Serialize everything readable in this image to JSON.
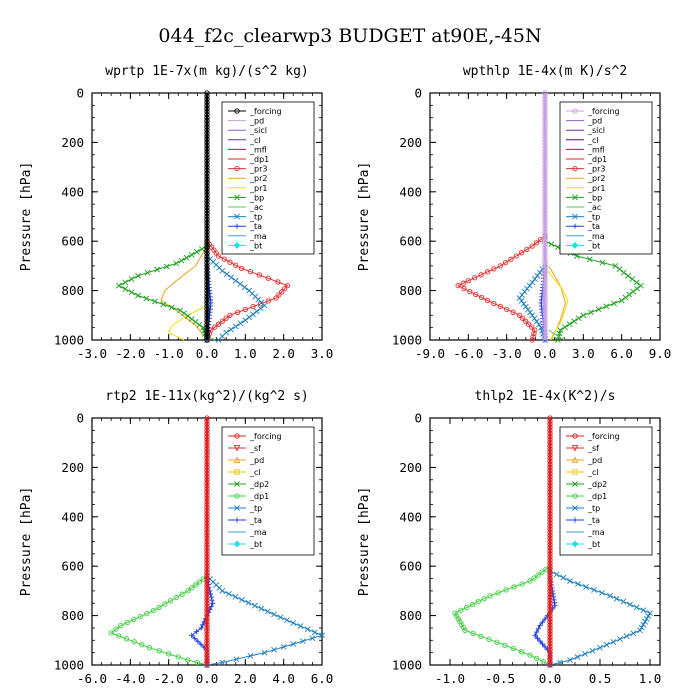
{
  "figure": {
    "title": "044_f2c_clearwp3  BUDGET at90E,-45N"
  },
  "chart_data": [
    {
      "type": "line",
      "title": "wprtp  1E-7x(m kg)/(s^2 kg)",
      "ylabel": "Pressure [hPa]",
      "xlabel": "",
      "xlim": [
        -3,
        3
      ],
      "ylim": [
        0,
        1000
      ],
      "y_inverted": true,
      "xticks": [
        "-3.0",
        "-2.0",
        "-1.0",
        "0.0",
        "1.0",
        "2.0",
        "3.0"
      ],
      "yticks": [
        "0",
        "200",
        "400",
        "600",
        "800",
        "1000"
      ],
      "legend_position": "upper-right",
      "series": [
        {
          "name": "_forcing",
          "color": "#000000",
          "marker": "circle",
          "points": [
            [
              0,
              0
            ],
            [
              0,
              1000
            ]
          ]
        },
        {
          "name": "_pd",
          "color": "#c8a0e0",
          "marker": "none",
          "points": []
        },
        {
          "name": "_sicl",
          "color": "#9060c0",
          "marker": "none",
          "points": []
        },
        {
          "name": "_cl",
          "color": "#7030a0",
          "marker": "none",
          "points": []
        },
        {
          "name": "_mfl",
          "color": "#b01050",
          "marker": "none",
          "points": []
        },
        {
          "name": "_dp1",
          "color": "#e02020",
          "marker": "none",
          "points": []
        },
        {
          "name": "_pr3",
          "color": "#e03030",
          "marker": "circle",
          "points": [
            [
              0,
              600
            ],
            [
              0.3,
              660
            ],
            [
              0.9,
              710
            ],
            [
              1.6,
              750
            ],
            [
              2.1,
              780
            ],
            [
              1.8,
              830
            ],
            [
              0.6,
              900
            ],
            [
              0.1,
              960
            ],
            [
              0,
              1000
            ]
          ]
        },
        {
          "name": "_pr2",
          "color": "#f0a020",
          "marker": "none",
          "points": [
            [
              0,
              620
            ],
            [
              -0.3,
              700
            ],
            [
              -0.8,
              760
            ],
            [
              -1.1,
              800
            ],
            [
              -1.2,
              840
            ],
            [
              -0.8,
              880
            ],
            [
              -0.3,
              940
            ],
            [
              0,
              1000
            ]
          ]
        },
        {
          "name": "_pr1",
          "color": "#f0e000",
          "marker": "none",
          "points": [
            [
              0,
              860
            ],
            [
              -0.5,
              900
            ],
            [
              -0.9,
              940
            ],
            [
              -1.0,
              970
            ],
            [
              -0.6,
              1000
            ]
          ]
        },
        {
          "name": "_bp",
          "color": "#20a020",
          "marker": "x",
          "points": [
            [
              0,
              620
            ],
            [
              -0.8,
              690
            ],
            [
              -1.8,
              740
            ],
            [
              -2.3,
              780
            ],
            [
              -1.8,
              820
            ],
            [
              -0.7,
              880
            ],
            [
              -0.1,
              950
            ],
            [
              0,
              1000
            ]
          ]
        },
        {
          "name": "_ac",
          "color": "#60c060",
          "marker": "none",
          "points": [
            [
              0,
              980
            ],
            [
              0.2,
              1000
            ]
          ]
        },
        {
          "name": "_tp",
          "color": "#2080c0",
          "marker": "x",
          "points": [
            [
              0,
              660
            ],
            [
              0.4,
              720
            ],
            [
              1.1,
              800
            ],
            [
              1.5,
              860
            ],
            [
              1.0,
              920
            ],
            [
              0.5,
              970
            ],
            [
              0.3,
              1000
            ]
          ]
        },
        {
          "name": "_ta",
          "color": "#2040e0",
          "marker": "plus",
          "points": [
            [
              0,
              700
            ],
            [
              0.1,
              850
            ],
            [
              0,
              1000
            ]
          ]
        },
        {
          "name": "_ma",
          "color": "#40a0e0",
          "marker": "none",
          "points": []
        },
        {
          "name": "_bt",
          "color": "#20e0e0",
          "marker": "diamond",
          "points": []
        }
      ]
    },
    {
      "type": "line",
      "title": "wpthlp  1E-4x(m K)/s^2",
      "ylabel": "Pressure [hPa]",
      "xlabel": "",
      "xlim": [
        -9,
        9
      ],
      "ylim": [
        0,
        1000
      ],
      "y_inverted": true,
      "xticks": [
        "-9.0",
        "-6.0",
        "-3.0",
        "0.0",
        "3.0",
        "6.0",
        "9.0"
      ],
      "yticks": [
        "0",
        "200",
        "400",
        "600",
        "800",
        "1000"
      ],
      "legend_position": "upper-right",
      "series": [
        {
          "name": "_forcing",
          "color": "#c8a0e0",
          "marker": "circle",
          "points": [
            [
              0,
              0
            ],
            [
              0,
              1000
            ]
          ]
        },
        {
          "name": "_pd",
          "color": "#9060c0",
          "marker": "none",
          "points": []
        },
        {
          "name": "_sicl",
          "color": "#7030a0",
          "marker": "none",
          "points": []
        },
        {
          "name": "_cl",
          "color": "#600080",
          "marker": "none",
          "points": []
        },
        {
          "name": "_mfl",
          "color": "#b01050",
          "marker": "none",
          "points": []
        },
        {
          "name": "_dp1",
          "color": "#e02020",
          "marker": "none",
          "points": []
        },
        {
          "name": "_pr3",
          "color": "#e03030",
          "marker": "circle",
          "points": [
            [
              0,
              580
            ],
            [
              -1.0,
              620
            ],
            [
              -3.5,
              700
            ],
            [
              -6.0,
              760
            ],
            [
              -6.8,
              780
            ],
            [
              -4.5,
              840
            ],
            [
              -2.0,
              900
            ],
            [
              -0.8,
              960
            ],
            [
              -1.0,
              1000
            ]
          ]
        },
        {
          "name": "_pr2",
          "color": "#f0a020",
          "marker": "none",
          "points": [
            [
              0.3,
              700
            ],
            [
              1.2,
              780
            ],
            [
              1.6,
              850
            ],
            [
              1.2,
              920
            ],
            [
              0.5,
              1000
            ]
          ]
        },
        {
          "name": "_pr1",
          "color": "#f0e000",
          "marker": "none",
          "points": [
            [
              0.2,
              720
            ],
            [
              1.3,
              790
            ],
            [
              1.8,
              840
            ],
            [
              1.3,
              920
            ],
            [
              0.4,
              1000
            ]
          ]
        },
        {
          "name": "_bp",
          "color": "#20a020",
          "marker": "x",
          "points": [
            [
              0,
              600
            ],
            [
              2.5,
              660
            ],
            [
              5.5,
              700
            ],
            [
              7.5,
              780
            ],
            [
              6.0,
              840
            ],
            [
              3.0,
              900
            ],
            [
              1.2,
              960
            ],
            [
              1.0,
              1000
            ]
          ]
        },
        {
          "name": "_ac",
          "color": "#60c060",
          "marker": "none",
          "points": [
            [
              0.3,
              960
            ],
            [
              1.5,
              1000
            ]
          ]
        },
        {
          "name": "_tp",
          "color": "#2080c0",
          "marker": "x",
          "points": [
            [
              0,
              700
            ],
            [
              -1.2,
              780
            ],
            [
              -2.0,
              830
            ],
            [
              -1.0,
              900
            ],
            [
              -0.3,
              950
            ],
            [
              0,
              1000
            ]
          ]
        },
        {
          "name": "_ta",
          "color": "#2040e0",
          "marker": "plus",
          "points": [
            [
              0,
              700
            ],
            [
              -0.3,
              850
            ],
            [
              0,
              1000
            ]
          ]
        },
        {
          "name": "_ma",
          "color": "#40a0e0",
          "marker": "none",
          "points": []
        },
        {
          "name": "_bt",
          "color": "#20e0e0",
          "marker": "diamond",
          "points": []
        }
      ]
    },
    {
      "type": "line",
      "title": "rtp2  1E-11x(kg^2)/(kg^2 s)",
      "ylabel": "Pressure [hPa]",
      "xlabel": "",
      "xlim": [
        -6,
        6
      ],
      "ylim": [
        0,
        1000
      ],
      "y_inverted": true,
      "xticks": [
        "-6.0",
        "-4.0",
        "-2.0",
        "0.0",
        "2.0",
        "4.0",
        "6.0"
      ],
      "yticks": [
        "0",
        "200",
        "400",
        "600",
        "800",
        "1000"
      ],
      "legend_position": "upper-right",
      "series": [
        {
          "name": "_forcing",
          "color": "#e02020",
          "marker": "circle",
          "points": [
            [
              0,
              0
            ],
            [
              0,
              1000
            ]
          ]
        },
        {
          "name": "_sf",
          "color": "#e03030",
          "marker": "triangle-down",
          "points": []
        },
        {
          "name": "_pd",
          "color": "#f0a020",
          "marker": "triangle-up",
          "points": []
        },
        {
          "name": "_cl",
          "color": "#f0c000",
          "marker": "square",
          "points": []
        },
        {
          "name": "_dp2",
          "color": "#20a020",
          "marker": "x",
          "points": []
        },
        {
          "name": "_dp1",
          "color": "#40d040",
          "marker": "circle",
          "points": [
            [
              0,
              640
            ],
            [
              -1.0,
              700
            ],
            [
              -2.8,
              780
            ],
            [
              -4.5,
              840
            ],
            [
              -5.0,
              870
            ],
            [
              -3.0,
              930
            ],
            [
              -1.0,
              980
            ],
            [
              0,
              1000
            ]
          ]
        },
        {
          "name": "_tp",
          "color": "#2080c0",
          "marker": "x",
          "points": [
            [
              0,
              640
            ],
            [
              0.8,
              700
            ],
            [
              2.5,
              760
            ],
            [
              4.5,
              830
            ],
            [
              6.0,
              880
            ],
            [
              3.0,
              950
            ],
            [
              0.8,
              990
            ],
            [
              0,
              1000
            ]
          ]
        },
        {
          "name": "_ta",
          "color": "#2040e0",
          "marker": "plus",
          "points": [
            [
              0,
              650
            ],
            [
              0.3,
              750
            ],
            [
              -0.3,
              850
            ],
            [
              -0.8,
              880
            ],
            [
              0,
              940
            ],
            [
              0,
              1000
            ]
          ]
        },
        {
          "name": "_ma",
          "color": "#40a0e0",
          "marker": "none",
          "points": []
        },
        {
          "name": "_bt",
          "color": "#20e0e0",
          "marker": "diamond",
          "points": []
        }
      ]
    },
    {
      "type": "line",
      "title": "thlp2  1E-4x(K^2)/s",
      "ylabel": "Pressure [hPa]",
      "xlabel": "",
      "xlim": [
        -1.2,
        1.1
      ],
      "ylim": [
        0,
        1000
      ],
      "y_inverted": true,
      "xticks": [
        "-1.0",
        "-0.5",
        "0.0",
        "0.5",
        "1.0"
      ],
      "xtick_values": [
        -1.0,
        -0.5,
        0.0,
        0.5,
        1.0
      ],
      "yticks": [
        "0",
        "200",
        "400",
        "600",
        "800",
        "1000"
      ],
      "legend_position": "upper-right",
      "series": [
        {
          "name": "_forcing",
          "color": "#e02020",
          "marker": "circle",
          "points": [
            [
              0,
              0
            ],
            [
              0,
              1000
            ]
          ]
        },
        {
          "name": "_sf",
          "color": "#e03030",
          "marker": "triangle-down",
          "points": []
        },
        {
          "name": "_pd",
          "color": "#f0a020",
          "marker": "triangle-up",
          "points": []
        },
        {
          "name": "_cl",
          "color": "#f0c000",
          "marker": "square",
          "points": []
        },
        {
          "name": "_dp2",
          "color": "#20a020",
          "marker": "x",
          "points": []
        },
        {
          "name": "_dp1",
          "color": "#40d040",
          "marker": "circle",
          "points": [
            [
              0,
              600
            ],
            [
              -0.2,
              660
            ],
            [
              -0.6,
              720
            ],
            [
              -0.95,
              790
            ],
            [
              -0.85,
              860
            ],
            [
              -0.45,
              920
            ],
            [
              -0.2,
              960
            ],
            [
              0,
              1000
            ]
          ]
        },
        {
          "name": "_tp",
          "color": "#2080c0",
          "marker": "x",
          "points": [
            [
              0,
              620
            ],
            [
              0.2,
              660
            ],
            [
              0.6,
              720
            ],
            [
              1.0,
              790
            ],
            [
              0.9,
              860
            ],
            [
              0.5,
              930
            ],
            [
              0.2,
              980
            ],
            [
              0,
              1000
            ]
          ]
        },
        {
          "name": "_ta",
          "color": "#2040e0",
          "marker": "plus",
          "points": [
            [
              0,
              640
            ],
            [
              0.05,
              760
            ],
            [
              -0.1,
              840
            ],
            [
              -0.15,
              880
            ],
            [
              0,
              950
            ],
            [
              0,
              1000
            ]
          ]
        },
        {
          "name": "_ma",
          "color": "#40a0e0",
          "marker": "none",
          "points": []
        },
        {
          "name": "_bt",
          "color": "#20e0e0",
          "marker": "diamond",
          "points": []
        }
      ]
    }
  ]
}
